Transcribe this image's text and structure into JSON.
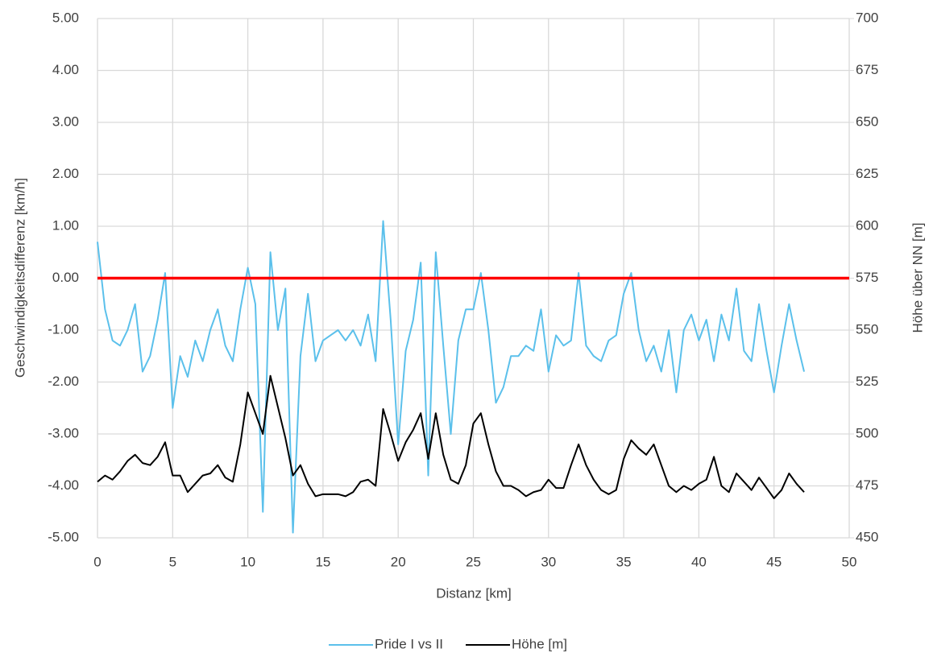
{
  "chart_data": {
    "type": "line",
    "x_label": "Distanz [km]",
    "y_label": "Geschwindigkeitsdifferenz [km/h]",
    "y2_label": "Höhe über NN [m]",
    "xlim": [
      0,
      50
    ],
    "xticks": [
      0,
      5,
      10,
      15,
      20,
      25,
      30,
      35,
      40,
      45,
      50
    ],
    "ylim": [
      -5,
      5
    ],
    "yticks": [
      {
        "value": -5,
        "label": "-5.00"
      },
      {
        "value": -4,
        "label": "-4.00"
      },
      {
        "value": -3,
        "label": "-3.00"
      },
      {
        "value": -2,
        "label": "-2.00"
      },
      {
        "value": -1,
        "label": "-1.00"
      },
      {
        "value": 0,
        "label": "0.00"
      },
      {
        "value": 1,
        "label": "1.00"
      },
      {
        "value": 2,
        "label": "2.00"
      },
      {
        "value": 3,
        "label": "3.00"
      },
      {
        "value": 4,
        "label": "4.00"
      },
      {
        "value": 5,
        "label": "5.00"
      }
    ],
    "y2lim": [
      450,
      700
    ],
    "y2ticks": [
      450,
      475,
      500,
      525,
      550,
      575,
      600,
      625,
      650,
      675,
      700
    ],
    "grid": true,
    "legend": "bottom",
    "hlines": [
      {
        "value": 0,
        "color": "#ff0000"
      }
    ],
    "x": [
      0,
      0.5,
      1,
      1.5,
      2,
      2.5,
      3,
      3.5,
      4,
      4.5,
      5,
      5.5,
      6,
      6.5,
      7,
      7.5,
      8,
      8.5,
      9,
      9.5,
      10,
      10.5,
      11,
      11.5,
      12,
      12.5,
      13,
      13.5,
      14,
      14.5,
      15,
      15.5,
      16,
      16.5,
      17,
      17.5,
      18,
      18.5,
      19,
      19.5,
      20,
      20.5,
      21,
      21.5,
      22,
      22.5,
      23,
      23.5,
      24,
      24.5,
      25,
      25.5,
      26,
      26.5,
      27,
      27.5,
      28,
      28.5,
      29,
      29.5,
      30,
      30.5,
      31,
      31.5,
      32,
      32.5,
      33,
      33.5,
      34,
      34.5,
      35,
      35.5,
      36,
      36.5,
      37,
      37.5,
      38,
      38.5,
      39,
      39.5,
      40,
      40.5,
      41,
      41.5,
      42,
      42.5,
      43,
      43.5,
      44,
      44.5,
      45,
      45.5,
      46,
      46.5,
      47
    ],
    "series": [
      {
        "name": "Pride I vs II",
        "color": "#5bc0eb",
        "values": [
          0.7,
          -0.6,
          -1.2,
          -1.3,
          -1.0,
          -0.5,
          -1.8,
          -1.5,
          -0.8,
          0.1,
          -2.5,
          -1.5,
          -1.9,
          -1.2,
          -1.6,
          -1.0,
          -0.6,
          -1.3,
          -1.6,
          -0.6,
          0.2,
          -0.5,
          -4.5,
          0.5,
          -1.0,
          -0.2,
          -4.9,
          -1.5,
          -0.3,
          -1.6,
          -1.2,
          -1.1,
          -1.0,
          -1.2,
          -1.0,
          -1.3,
          -0.7,
          -1.6,
          1.1,
          -0.8,
          -3.2,
          -1.4,
          -0.8,
          0.3,
          -3.8,
          0.5,
          -1.3,
          -3.0,
          -1.2,
          -0.6,
          -0.6,
          0.1,
          -1.0,
          -2.4,
          -2.1,
          -1.5,
          -1.5,
          -1.3,
          -1.4,
          -0.6,
          -1.8,
          -1.1,
          -1.3,
          -1.2,
          0.1,
          -1.3,
          -1.5,
          -1.6,
          -1.2,
          -1.1,
          -0.3,
          0.1,
          -1.0,
          -1.6,
          -1.3,
          -1.8,
          -1.0,
          -2.2,
          -1.0,
          -0.7,
          -1.2,
          -0.8,
          -1.6,
          -0.7,
          -1.2,
          -0.2,
          -1.4,
          -1.6,
          -0.5,
          -1.4,
          -2.2,
          -1.3,
          -0.5,
          -1.2,
          -1.8
        ]
      },
      {
        "name": "Höhe [m]",
        "color": "#000000",
        "axis": "y2",
        "values": [
          477,
          480,
          478,
          482,
          487,
          490,
          486,
          485,
          489,
          496,
          480,
          480,
          472,
          476,
          480,
          481,
          485,
          479,
          477,
          495,
          520,
          510,
          500,
          528,
          513,
          498,
          480,
          485,
          476,
          470,
          471,
          471,
          471,
          470,
          472,
          477,
          478,
          475,
          512,
          500,
          487,
          496,
          502,
          510,
          488,
          510,
          490,
          478,
          476,
          485,
          505,
          510,
          495,
          482,
          475,
          475,
          473,
          470,
          472,
          473,
          478,
          474,
          474,
          485,
          495,
          485,
          478,
          473,
          471,
          473,
          488,
          497,
          493,
          490,
          495,
          485,
          475,
          472,
          475,
          473,
          476,
          478,
          489,
          475,
          472,
          481,
          477,
          473,
          479,
          474,
          469,
          473,
          481,
          476,
          472
        ]
      }
    ]
  }
}
